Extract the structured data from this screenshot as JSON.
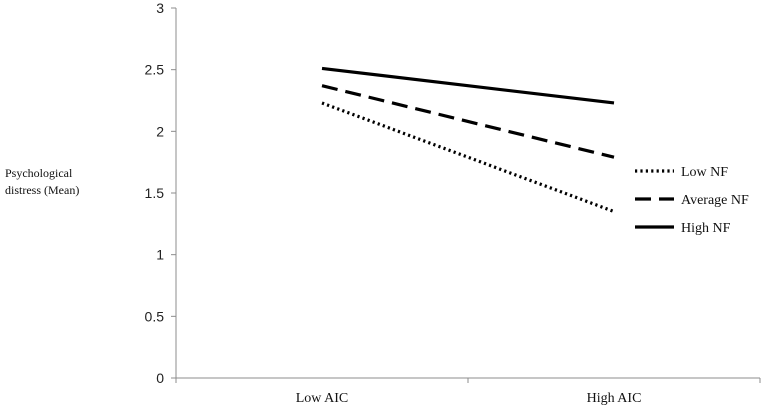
{
  "chart_data": {
    "type": "line",
    "title": "",
    "xlabel": "",
    "ylabel_lines": [
      "Psychological",
      "distress (Mean)"
    ],
    "categories": [
      "Low AIC",
      "High AIC"
    ],
    "ylim": [
      0,
      3
    ],
    "yticks": [
      "0",
      "0.5",
      "1",
      "1.5",
      "2",
      "2.5",
      "3"
    ],
    "grid": false,
    "legend_position": "right",
    "series": [
      {
        "name": "Low NF",
        "values": [
          2.23,
          1.35
        ],
        "style": "dotted",
        "color": "#000000"
      },
      {
        "name": "Average NF",
        "values": [
          2.37,
          1.79
        ],
        "style": "dashed",
        "color": "#000000"
      },
      {
        "name": "High NF",
        "values": [
          2.51,
          2.23
        ],
        "style": "solid",
        "color": "#000000"
      }
    ]
  }
}
